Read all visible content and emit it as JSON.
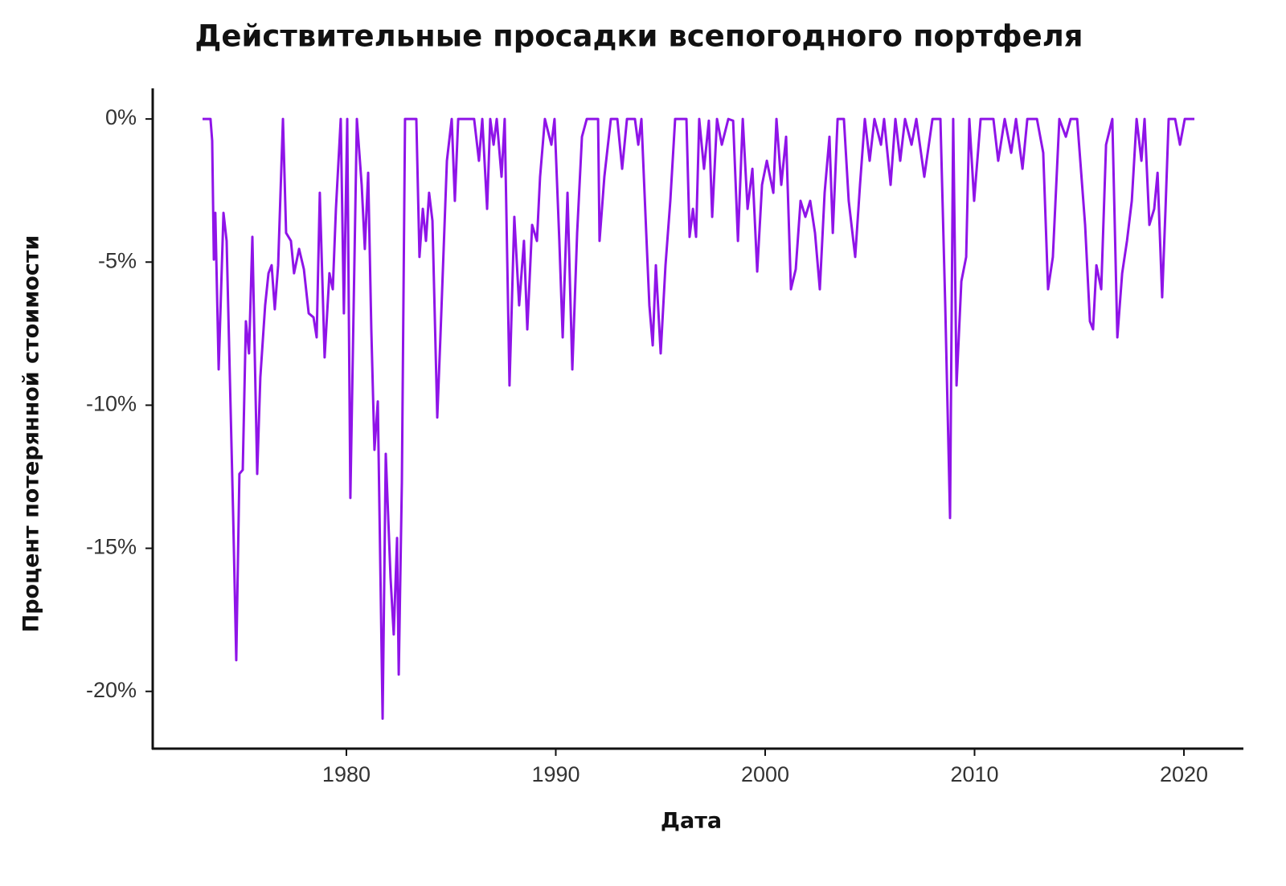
{
  "chart_data": {
    "type": "line",
    "title": "Действительные просадки всепогодного портфеля",
    "x_label": "Дата",
    "y_label": "Процент потерянной стоимости",
    "color": "#8f14e8",
    "grid": false,
    "xlim": [
      1970.75,
      2022.84
    ],
    "xticks": [
      1980,
      1990,
      2000,
      2010,
      2020
    ],
    "ylim": [
      -22.0,
      1.07
    ],
    "yticks": [
      {
        "value": 0,
        "label": "0%"
      },
      {
        "value": -5,
        "label": "-5%"
      },
      {
        "value": -10,
        "label": "-10%"
      },
      {
        "value": -15,
        "label": "-15%"
      },
      {
        "value": -20,
        "label": "-20%"
      }
    ],
    "x": [
      1973.13,
      1973.51,
      1973.59,
      1973.67,
      1973.74,
      1973.9,
      1974.13,
      1974.28,
      1974.59,
      1974.74,
      1974.89,
      1975.05,
      1975.2,
      1975.35,
      1975.51,
      1975.74,
      1975.89,
      1976.12,
      1976.28,
      1976.43,
      1976.58,
      1976.74,
      1976.97,
      1977.12,
      1977.35,
      1977.5,
      1977.74,
      1977.97,
      1978.2,
      1978.43,
      1978.58,
      1978.73,
      1978.96,
      1979.19,
      1979.35,
      1979.5,
      1979.73,
      1979.88,
      1980.04,
      1980.19,
      1980.5,
      1980.73,
      1980.88,
      1981.04,
      1981.19,
      1981.34,
      1981.5,
      1981.73,
      1981.88,
      1982.11,
      1982.26,
      1982.42,
      1982.5,
      1982.65,
      1982.8,
      1983.34,
      1983.49,
      1983.65,
      1983.8,
      1983.95,
      1984.11,
      1984.34,
      1984.49,
      1984.8,
      1985.03,
      1985.18,
      1985.34,
      1986.1,
      1986.33,
      1986.49,
      1986.72,
      1986.87,
      1987.03,
      1987.18,
      1987.41,
      1987.56,
      1987.79,
      1988.02,
      1988.25,
      1988.48,
      1988.64,
      1988.87,
      1989.1,
      1989.25,
      1989.48,
      1989.79,
      1989.94,
      1990.17,
      1990.33,
      1990.56,
      1990.79,
      1991.02,
      1991.25,
      1991.48,
      1992.02,
      1992.09,
      1992.32,
      1992.63,
      1992.94,
      1993.17,
      1993.4,
      1993.78,
      1993.94,
      1994.09,
      1994.32,
      1994.47,
      1994.63,
      1994.78,
      1995.01,
      1995.24,
      1995.47,
      1995.7,
      1996.24,
      1996.39,
      1996.55,
      1996.7,
      1996.85,
      1997.08,
      1997.31,
      1997.47,
      1997.7,
      1997.93,
      1998.24,
      1998.47,
      1998.7,
      1998.93,
      1999.16,
      1999.39,
      1999.62,
      1999.85,
      2000.08,
      2000.39,
      2000.54,
      2000.77,
      2001.0,
      2001.23,
      2001.46,
      2001.69,
      2001.92,
      2002.15,
      2002.38,
      2002.61,
      2002.84,
      2003.07,
      2003.23,
      2003.46,
      2003.76,
      2003.99,
      2004.3,
      2004.53,
      2004.76,
      2004.99,
      2005.22,
      2005.53,
      2005.68,
      2005.99,
      2006.22,
      2006.45,
      2006.68,
      2006.99,
      2007.22,
      2007.6,
      2007.99,
      2008.37,
      2008.6,
      2008.83,
      2008.98,
      2009.14,
      2009.37,
      2009.6,
      2009.75,
      2009.98,
      2010.29,
      2010.9,
      2011.13,
      2011.44,
      2011.75,
      2011.98,
      2012.29,
      2012.52,
      2012.98,
      2013.28,
      2013.51,
      2013.74,
      2014.05,
      2014.36,
      2014.59,
      2014.9,
      2015.05,
      2015.28,
      2015.51,
      2015.66,
      2015.82,
      2016.05,
      2016.28,
      2016.58,
      2016.82,
      2017.05,
      2017.28,
      2017.51,
      2017.74,
      2017.97,
      2018.12,
      2018.35,
      2018.58,
      2018.74,
      2018.96,
      2019.12,
      2019.27,
      2019.58,
      2019.81,
      2020.04,
      2020.5
    ],
    "values": [
      0,
      0,
      -0.76,
      -4.91,
      -3.28,
      -8.75,
      -3.28,
      -4.26,
      -13.8,
      -18.91,
      -12.4,
      -12.26,
      -7.07,
      -8.19,
      -4.12,
      -12.4,
      -9.03,
      -6.51,
      -5.39,
      -5.11,
      -6.65,
      -5.11,
      0,
      -3.98,
      -4.26,
      -5.39,
      -4.54,
      -5.25,
      -6.79,
      -6.93,
      -7.63,
      -2.58,
      -8.33,
      -5.39,
      -5.95,
      -3.14,
      0,
      -6.79,
      0,
      -13.24,
      0,
      -2.3,
      -4.54,
      -1.88,
      -7.35,
      -11.56,
      -9.87,
      -20.95,
      -11.7,
      -16.04,
      -18.01,
      -14.64,
      -19.41,
      -12.68,
      0,
      0,
      -4.82,
      -3.14,
      -4.26,
      -2.58,
      -3.56,
      -10.43,
      -7.63,
      -1.46,
      0,
      -2.86,
      0,
      0,
      -1.46,
      0,
      -3.14,
      0,
      -0.9,
      0,
      -2.02,
      0,
      -9.31,
      -3.42,
      -6.51,
      -4.26,
      -7.35,
      -3.7,
      -4.26,
      -2.02,
      0,
      -0.9,
      0,
      -4.26,
      -7.63,
      -2.58,
      -8.75,
      -3.98,
      -0.62,
      0,
      0,
      -4.26,
      -2.02,
      0,
      0,
      -1.74,
      0,
      0,
      -0.9,
      0,
      -3.98,
      -6.51,
      -7.91,
      -5.11,
      -8.19,
      -5.11,
      -2.86,
      0,
      0,
      -4.12,
      -3.14,
      -4.12,
      0,
      -1.74,
      -0.06,
      -3.42,
      0,
      -0.9,
      0,
      -0.06,
      -4.26,
      0,
      -3.14,
      -1.74,
      -5.33,
      -2.3,
      -1.46,
      -2.58,
      0,
      -2.3,
      -0.62,
      -5.95,
      -5.25,
      -2.86,
      -3.42,
      -2.86,
      -3.98,
      -5.95,
      -2.58,
      -0.62,
      -3.98,
      0,
      0,
      -2.86,
      -4.82,
      -2.3,
      0,
      -1.46,
      0,
      -0.9,
      0,
      -2.3,
      0,
      -1.46,
      0,
      -0.9,
      0,
      -2.02,
      0,
      0,
      -6.51,
      -13.94,
      0,
      -9.31,
      -5.67,
      -4.82,
      0,
      -2.86,
      0,
      0,
      -1.46,
      0,
      -1.18,
      0,
      -1.74,
      0,
      0,
      -1.18,
      -5.95,
      -4.82,
      0,
      -0.62,
      0,
      0,
      -1.46,
      -3.7,
      -7.07,
      -7.35,
      -5.11,
      -5.95,
      -0.9,
      0,
      -7.63,
      -5.39,
      -4.26,
      -2.86,
      0,
      -1.46,
      0,
      -3.7,
      -3.14,
      -1.88,
      -6.23,
      -3.14,
      0,
      0,
      -0.9,
      0,
      0
    ]
  }
}
